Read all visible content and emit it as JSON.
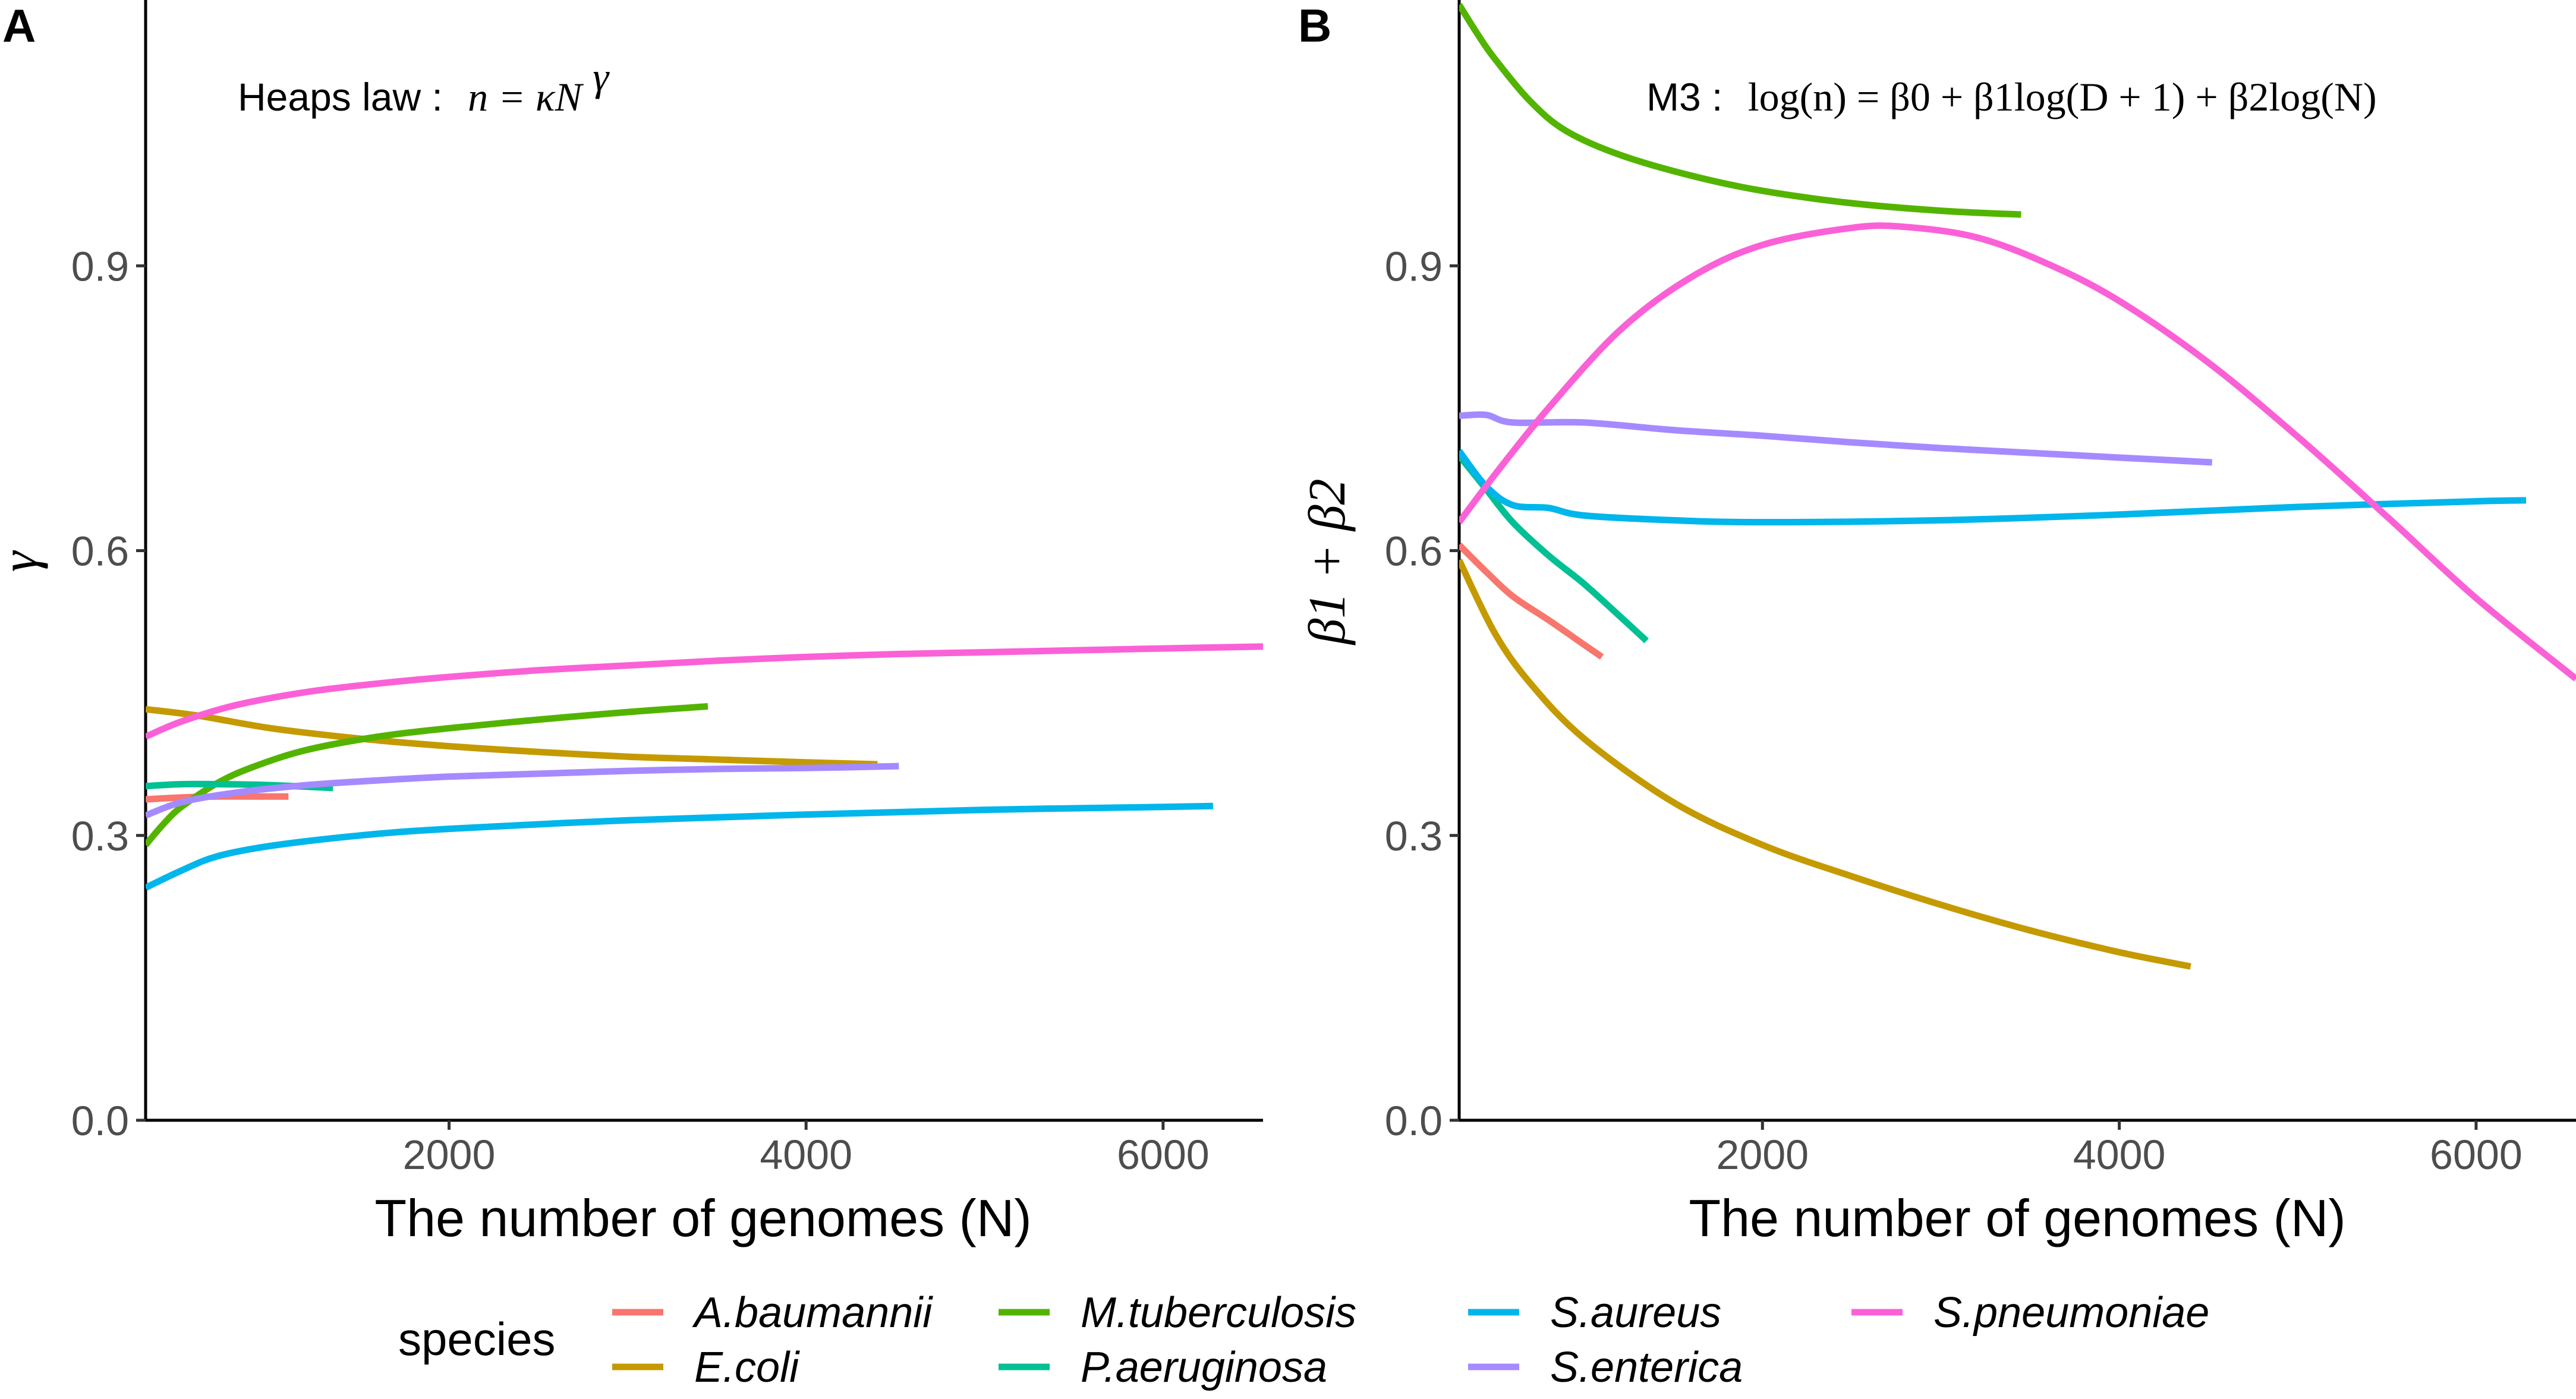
{
  "chart_data": [
    {
      "panel": "A",
      "type": "line",
      "annotation": "Heaps law : n = κN^γ",
      "annotation_parts": {
        "prefix": "Heaps law :",
        "formula": "n = κN",
        "sup": "γ"
      },
      "xlabel": "The number of genomes (N)",
      "ylabel": "γ",
      "xlim": [
        300,
        6560
      ],
      "ylim": [
        0,
        1.18
      ],
      "xticks": [
        2000,
        4000,
        6000
      ],
      "yticks": [
        0.0,
        0.3,
        0.6,
        0.9
      ],
      "xtick_labels": [
        "2000",
        "4000",
        "6000"
      ],
      "ytick_labels": [
        "0.0",
        "0.3",
        "0.6",
        "0.9"
      ],
      "series": [
        {
          "name": "A.baumannii",
          "color": "#F8766D",
          "points": [
            [
              300,
              0.338
            ],
            [
              500,
              0.34
            ],
            [
              700,
              0.341
            ],
            [
              900,
              0.341
            ],
            [
              1100,
              0.341
            ]
          ]
        },
        {
          "name": "E.coli",
          "color": "#C49A00",
          "points": [
            [
              300,
              0.433
            ],
            [
              600,
              0.426
            ],
            [
              1000,
              0.413
            ],
            [
              1500,
              0.402
            ],
            [
              2000,
              0.394
            ],
            [
              2500,
              0.388
            ],
            [
              3000,
              0.383
            ],
            [
              3500,
              0.38
            ],
            [
              4000,
              0.377
            ],
            [
              4400,
              0.375
            ]
          ]
        },
        {
          "name": "M.tuberculosis",
          "color": "#53B400",
          "points": [
            [
              300,
              0.29
            ],
            [
              400,
              0.312
            ],
            [
              500,
              0.33
            ],
            [
              700,
              0.355
            ],
            [
              900,
              0.372
            ],
            [
              1200,
              0.39
            ],
            [
              1600,
              0.404
            ],
            [
              2000,
              0.413
            ],
            [
              2500,
              0.422
            ],
            [
              3000,
              0.43
            ],
            [
              3450,
              0.436
            ]
          ]
        },
        {
          "name": "P.aeruginosa",
          "color": "#00C094",
          "points": [
            [
              300,
              0.352
            ],
            [
              500,
              0.354
            ],
            [
              700,
              0.354
            ],
            [
              1000,
              0.353
            ],
            [
              1350,
              0.35
            ]
          ]
        },
        {
          "name": "S.aureus",
          "color": "#00B6EB",
          "points": [
            [
              300,
              0.245
            ],
            [
              500,
              0.263
            ],
            [
              700,
              0.278
            ],
            [
              1000,
              0.289
            ],
            [
              1500,
              0.3
            ],
            [
              2000,
              0.307
            ],
            [
              3000,
              0.316
            ],
            [
              4000,
              0.322
            ],
            [
              5000,
              0.327
            ],
            [
              6000,
              0.33
            ],
            [
              6280,
              0.331
            ]
          ]
        },
        {
          "name": "S.enterica",
          "color": "#A58AFF",
          "points": [
            [
              300,
              0.321
            ],
            [
              500,
              0.335
            ],
            [
              800,
              0.345
            ],
            [
              1200,
              0.353
            ],
            [
              1600,
              0.358
            ],
            [
              2000,
              0.362
            ],
            [
              2500,
              0.365
            ],
            [
              3000,
              0.368
            ],
            [
              3500,
              0.37
            ],
            [
              4000,
              0.371
            ],
            [
              4520,
              0.373
            ]
          ]
        },
        {
          "name": "S.pneumoniae",
          "color": "#FB61D7",
          "points": [
            [
              300,
              0.404
            ],
            [
              500,
              0.42
            ],
            [
              800,
              0.437
            ],
            [
              1200,
              0.451
            ],
            [
              1600,
              0.46
            ],
            [
              2000,
              0.467
            ],
            [
              2500,
              0.474
            ],
            [
              3000,
              0.479
            ],
            [
              3500,
              0.484
            ],
            [
              4000,
              0.488
            ],
            [
              4500,
              0.491
            ],
            [
              5000,
              0.493
            ],
            [
              5500,
              0.495
            ],
            [
              6000,
              0.497
            ],
            [
              6560,
              0.499
            ]
          ]
        }
      ]
    },
    {
      "panel": "B",
      "type": "line",
      "annotation": "M3 : log(n) = β0 + β1log(D + 1) + β2log(N)",
      "annotation_parts": {
        "prefix": "M3 :",
        "formula": "log(n) = β0 + β1log(D + 1) + β2log(N)"
      },
      "xlabel": "The number of genomes (N)",
      "ylabel": "β1 + β2",
      "xlim": [
        300,
        6560
      ],
      "ylim": [
        0,
        1.18
      ],
      "xticks": [
        2000,
        4000,
        6000
      ],
      "yticks": [
        0.0,
        0.3,
        0.6,
        0.9
      ],
      "xtick_labels": [
        "2000",
        "4000",
        "6000"
      ],
      "ytick_labels": [
        "0.0",
        "0.3",
        "0.6",
        "0.9"
      ],
      "series": [
        {
          "name": "A.baumannii",
          "color": "#F8766D",
          "points": [
            [
              300,
              0.606
            ],
            [
              450,
              0.578
            ],
            [
              600,
              0.552
            ],
            [
              800,
              0.527
            ],
            [
              1000,
              0.501
            ],
            [
              1100,
              0.488
            ]
          ]
        },
        {
          "name": "E.coli",
          "color": "#C49A00",
          "points": [
            [
              300,
              0.59
            ],
            [
              500,
              0.513
            ],
            [
              700,
              0.46
            ],
            [
              1000,
              0.402
            ],
            [
              1500,
              0.335
            ],
            [
              2000,
              0.29
            ],
            [
              2500,
              0.257
            ],
            [
              3000,
              0.227
            ],
            [
              3500,
              0.2
            ],
            [
              4000,
              0.177
            ],
            [
              4400,
              0.162
            ]
          ]
        },
        {
          "name": "M.tuberculosis",
          "color": "#53B400",
          "points": [
            [
              300,
              1.175
            ],
            [
              400,
              1.145
            ],
            [
              500,
              1.118
            ],
            [
              700,
              1.073
            ],
            [
              900,
              1.042
            ],
            [
              1200,
              1.017
            ],
            [
              1600,
              0.995
            ],
            [
              2000,
              0.979
            ],
            [
              2500,
              0.966
            ],
            [
              3000,
              0.958
            ],
            [
              3450,
              0.954
            ]
          ]
        },
        {
          "name": "P.aeruginosa",
          "color": "#00C094",
          "points": [
            [
              300,
              0.7
            ],
            [
              450,
              0.665
            ],
            [
              600,
              0.63
            ],
            [
              800,
              0.595
            ],
            [
              1000,
              0.565
            ],
            [
              1200,
              0.531
            ],
            [
              1350,
              0.505
            ]
          ]
        },
        {
          "name": "S.aureus",
          "color": "#00B6EB",
          "points": [
            [
              300,
              0.705
            ],
            [
              450,
              0.668
            ],
            [
              600,
              0.648
            ],
            [
              800,
              0.645
            ],
            [
              1000,
              0.637
            ],
            [
              1500,
              0.632
            ],
            [
              2000,
              0.63
            ],
            [
              3000,
              0.632
            ],
            [
              4000,
              0.638
            ],
            [
              5000,
              0.646
            ],
            [
              6000,
              0.652
            ],
            [
              6280,
              0.653
            ]
          ]
        },
        {
          "name": "S.enterica",
          "color": "#A58AFF",
          "points": [
            [
              300,
              0.742
            ],
            [
              450,
              0.743
            ],
            [
              600,
              0.735
            ],
            [
              1000,
              0.735
            ],
            [
              1500,
              0.727
            ],
            [
              2000,
              0.721
            ],
            [
              2500,
              0.714
            ],
            [
              3000,
              0.708
            ],
            [
              3500,
              0.703
            ],
            [
              4000,
              0.698
            ],
            [
              4520,
              0.693
            ]
          ]
        },
        {
          "name": "S.pneumoniae",
          "color": "#FB61D7",
          "points": [
            [
              300,
              0.63
            ],
            [
              500,
              0.68
            ],
            [
              800,
              0.75
            ],
            [
              1200,
              0.832
            ],
            [
              1600,
              0.888
            ],
            [
              2000,
              0.922
            ],
            [
              2500,
              0.94
            ],
            [
              2800,
              0.941
            ],
            [
              3200,
              0.93
            ],
            [
              3600,
              0.902
            ],
            [
              4000,
              0.863
            ],
            [
              4500,
              0.798
            ],
            [
              5000,
              0.72
            ],
            [
              5500,
              0.636
            ],
            [
              6000,
              0.55
            ],
            [
              6560,
              0.465
            ]
          ]
        }
      ]
    }
  ],
  "legend": {
    "title": "species",
    "placement": "bottom",
    "items": [
      {
        "name": "A.baumannii",
        "color": "#F8766D"
      },
      {
        "name": "E.coli",
        "color": "#C49A00"
      },
      {
        "name": "M.tuberculosis",
        "color": "#53B400"
      },
      {
        "name": "P.aeruginosa",
        "color": "#00C094"
      },
      {
        "name": "S.aureus",
        "color": "#00B6EB"
      },
      {
        "name": "S.enterica",
        "color": "#A58AFF"
      },
      {
        "name": "S.pneumoniae",
        "color": "#FB61D7"
      }
    ]
  }
}
